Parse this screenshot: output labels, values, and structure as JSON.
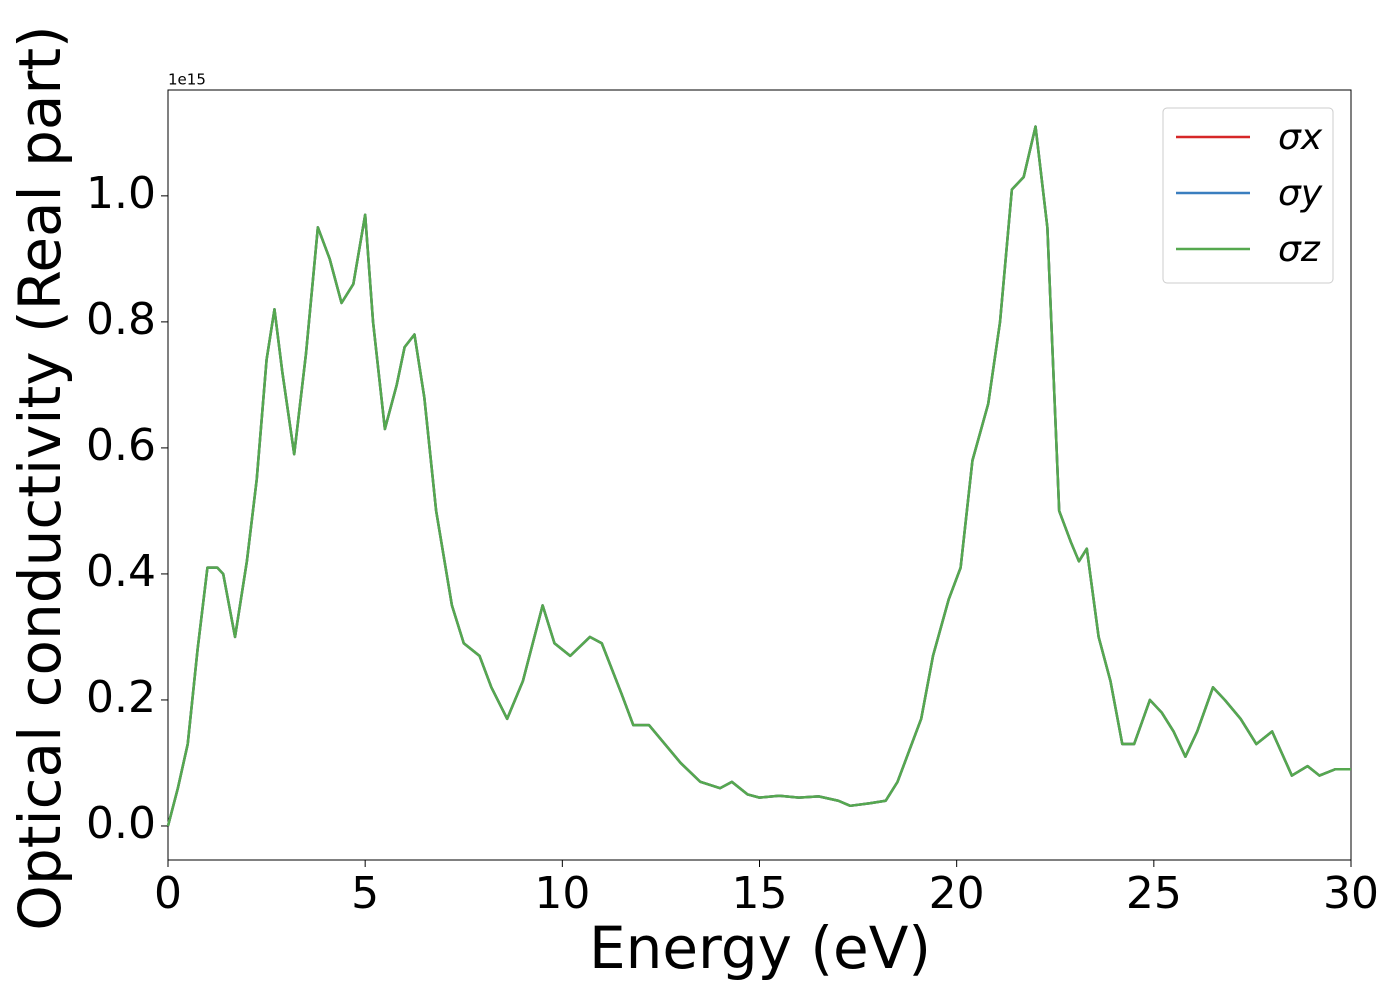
{
  "chart_data": {
    "type": "line",
    "xlabel": "Energy (eV)",
    "ylabel": "Optical conductivity (Real part)",
    "y_offset_label": "1e15",
    "x": [
      0,
      0.25,
      0.5,
      0.75,
      1.0,
      1.25,
      1.4,
      1.7,
      2.0,
      2.25,
      2.5,
      2.7,
      2.9,
      3.2,
      3.5,
      3.8,
      4.1,
      4.4,
      4.7,
      5.0,
      5.2,
      5.5,
      5.8,
      6.0,
      6.25,
      6.5,
      6.8,
      7.2,
      7.5,
      7.9,
      8.2,
      8.6,
      9.0,
      9.5,
      9.8,
      10.2,
      10.7,
      11.0,
      11.5,
      11.8,
      12.2,
      12.6,
      13.0,
      13.5,
      14.0,
      14.3,
      14.7,
      15.0,
      15.5,
      16.0,
      16.5,
      17.0,
      17.3,
      17.8,
      18.2,
      18.5,
      18.8,
      19.1,
      19.4,
      19.8,
      20.1,
      20.4,
      20.8,
      21.1,
      21.4,
      21.7,
      22.0,
      22.3,
      22.6,
      22.9,
      23.1,
      23.3,
      23.6,
      23.9,
      24.2,
      24.5,
      24.9,
      25.2,
      25.5,
      25.8,
      26.1,
      26.5,
      26.8,
      27.2,
      27.6,
      28.0,
      28.5,
      28.9,
      29.2,
      29.6,
      30.0
    ],
    "series": [
      {
        "name": "σx",
        "color": "#d62728",
        "values": [
          0,
          0.06,
          0.13,
          0.28,
          0.41,
          0.41,
          0.4,
          0.3,
          0.42,
          0.55,
          0.74,
          0.82,
          0.72,
          0.59,
          0.75,
          0.95,
          0.9,
          0.83,
          0.86,
          0.97,
          0.8,
          0.63,
          0.7,
          0.76,
          0.78,
          0.68,
          0.5,
          0.35,
          0.29,
          0.27,
          0.22,
          0.17,
          0.23,
          0.35,
          0.29,
          0.27,
          0.3,
          0.29,
          0.21,
          0.16,
          0.16,
          0.13,
          0.1,
          0.07,
          0.06,
          0.07,
          0.05,
          0.045,
          0.048,
          0.045,
          0.047,
          0.04,
          0.032,
          0.036,
          0.04,
          0.07,
          0.12,
          0.17,
          0.27,
          0.36,
          0.41,
          0.58,
          0.67,
          0.8,
          1.01,
          1.03,
          1.11,
          0.95,
          0.5,
          0.45,
          0.42,
          0.44,
          0.3,
          0.23,
          0.13,
          0.13,
          0.2,
          0.18,
          0.15,
          0.11,
          0.15,
          0.22,
          0.2,
          0.17,
          0.13,
          0.15,
          0.08,
          0.095,
          0.08,
          0.09,
          0.09
        ]
      },
      {
        "name": "σy",
        "color": "#3a7ebf",
        "values": [
          0,
          0.06,
          0.13,
          0.28,
          0.41,
          0.41,
          0.4,
          0.3,
          0.42,
          0.55,
          0.74,
          0.82,
          0.72,
          0.59,
          0.75,
          0.95,
          0.9,
          0.83,
          0.86,
          0.97,
          0.8,
          0.63,
          0.7,
          0.76,
          0.78,
          0.68,
          0.5,
          0.35,
          0.29,
          0.27,
          0.22,
          0.17,
          0.23,
          0.35,
          0.29,
          0.27,
          0.3,
          0.29,
          0.21,
          0.16,
          0.16,
          0.13,
          0.1,
          0.07,
          0.06,
          0.07,
          0.05,
          0.045,
          0.048,
          0.045,
          0.047,
          0.04,
          0.032,
          0.036,
          0.04,
          0.07,
          0.12,
          0.17,
          0.27,
          0.36,
          0.41,
          0.58,
          0.67,
          0.8,
          1.01,
          1.03,
          1.11,
          0.95,
          0.5,
          0.45,
          0.42,
          0.44,
          0.3,
          0.23,
          0.13,
          0.13,
          0.2,
          0.18,
          0.15,
          0.11,
          0.15,
          0.22,
          0.2,
          0.17,
          0.13,
          0.15,
          0.08,
          0.095,
          0.08,
          0.09,
          0.09
        ]
      },
      {
        "name": "σz",
        "color": "#55a84f",
        "values": [
          0,
          0.06,
          0.13,
          0.28,
          0.41,
          0.41,
          0.4,
          0.3,
          0.42,
          0.55,
          0.74,
          0.82,
          0.72,
          0.59,
          0.75,
          0.95,
          0.9,
          0.83,
          0.86,
          0.97,
          0.8,
          0.63,
          0.7,
          0.76,
          0.78,
          0.68,
          0.5,
          0.35,
          0.29,
          0.27,
          0.22,
          0.17,
          0.23,
          0.35,
          0.29,
          0.27,
          0.3,
          0.29,
          0.21,
          0.16,
          0.16,
          0.13,
          0.1,
          0.07,
          0.06,
          0.07,
          0.05,
          0.045,
          0.048,
          0.045,
          0.047,
          0.04,
          0.032,
          0.036,
          0.04,
          0.07,
          0.12,
          0.17,
          0.27,
          0.36,
          0.41,
          0.58,
          0.67,
          0.8,
          1.01,
          1.03,
          1.11,
          0.95,
          0.5,
          0.45,
          0.42,
          0.44,
          0.3,
          0.23,
          0.13,
          0.13,
          0.2,
          0.18,
          0.15,
          0.11,
          0.15,
          0.22,
          0.2,
          0.17,
          0.13,
          0.15,
          0.08,
          0.095,
          0.08,
          0.09,
          0.09
        ]
      }
    ],
    "xlim": [
      0,
      30
    ],
    "xticks": [
      0,
      5,
      10,
      15,
      20,
      25,
      30
    ],
    "ylim": [
      -0.054,
      1.168
    ],
    "yticks": [
      {
        "value": 0,
        "label": "0.0"
      },
      0.2,
      0.4,
      0.6,
      0.8,
      {
        "value": 1,
        "label": "1.0"
      }
    ],
    "grid": false,
    "legend": "upper right"
  }
}
